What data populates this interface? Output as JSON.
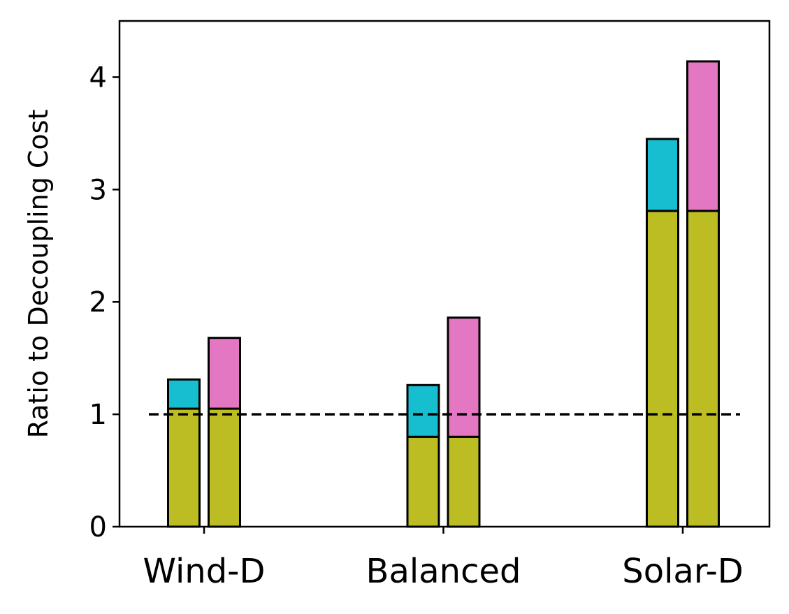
{
  "chart_data": {
    "type": "stacked-bar",
    "ylabel": "Ratio to Decoupling Cost",
    "categories": [
      "Wind-D",
      "Balanced",
      "Solar-D"
    ],
    "series": [
      {
        "color": "#bcbd22",
        "stack": 0,
        "values": [
          1.05,
          0.8,
          2.81
        ]
      },
      {
        "color": "#17becf",
        "stack": 0,
        "values": [
          0.26,
          0.46,
          0.64
        ]
      },
      {
        "color": "#bcbd22",
        "stack": 1,
        "values": [
          1.05,
          0.8,
          2.81
        ]
      },
      {
        "color": "#e377c2",
        "stack": 1,
        "values": [
          0.63,
          1.06,
          1.33
        ]
      }
    ],
    "hline": 1,
    "ylim": [
      0,
      4.5
    ],
    "yticks": [
      0,
      1,
      2,
      3,
      4
    ]
  }
}
